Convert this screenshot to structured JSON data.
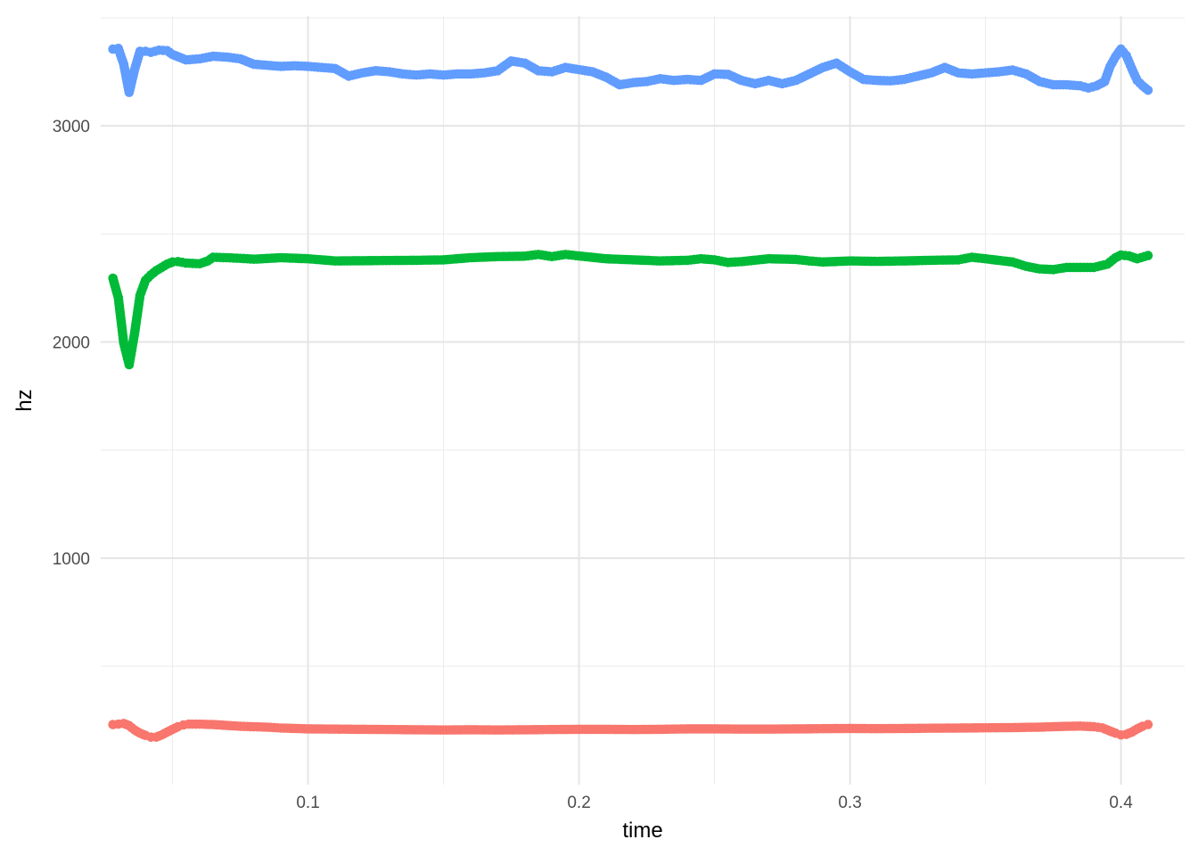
{
  "chart_data": {
    "type": "line",
    "title": "",
    "xlabel": "time",
    "ylabel": "hz",
    "xlim": [
      0.0235,
      0.4235
    ],
    "ylim": [
      -48,
      3508
    ],
    "x_ticks": [
      0.1,
      0.2,
      0.3,
      0.4
    ],
    "x_tick_labels": [
      "0.1",
      "0.2",
      "0.3",
      "0.4"
    ],
    "y_ticks": [
      1000,
      2000,
      3000
    ],
    "y_tick_labels": [
      "1000",
      "2000",
      "3000"
    ],
    "grid": true,
    "legend": "none",
    "series": [
      {
        "color": "#f8766d",
        "points": [
          [
            0.028,
            230
          ],
          [
            0.03,
            232
          ],
          [
            0.032,
            235
          ],
          [
            0.034,
            225
          ],
          [
            0.036,
            205
          ],
          [
            0.038,
            190
          ],
          [
            0.04,
            180
          ],
          [
            0.042,
            172
          ],
          [
            0.044,
            172
          ],
          [
            0.046,
            182
          ],
          [
            0.048,
            195
          ],
          [
            0.05,
            208
          ],
          [
            0.052,
            220
          ],
          [
            0.054,
            228
          ],
          [
            0.056,
            232
          ],
          [
            0.06,
            232
          ],
          [
            0.065,
            230
          ],
          [
            0.07,
            226
          ],
          [
            0.075,
            222
          ],
          [
            0.08,
            220
          ],
          [
            0.085,
            218
          ],
          [
            0.09,
            214
          ],
          [
            0.095,
            212
          ],
          [
            0.1,
            210
          ],
          [
            0.11,
            209
          ],
          [
            0.12,
            208
          ],
          [
            0.13,
            207
          ],
          [
            0.14,
            206
          ],
          [
            0.15,
            205
          ],
          [
            0.16,
            206
          ],
          [
            0.17,
            205
          ],
          [
            0.18,
            206
          ],
          [
            0.19,
            207
          ],
          [
            0.2,
            208
          ],
          [
            0.21,
            208
          ],
          [
            0.22,
            207
          ],
          [
            0.23,
            208
          ],
          [
            0.24,
            210
          ],
          [
            0.25,
            210
          ],
          [
            0.26,
            209
          ],
          [
            0.27,
            209
          ],
          [
            0.28,
            210
          ],
          [
            0.29,
            211
          ],
          [
            0.3,
            212
          ],
          [
            0.31,
            211
          ],
          [
            0.32,
            212
          ],
          [
            0.33,
            213
          ],
          [
            0.34,
            214
          ],
          [
            0.35,
            215
          ],
          [
            0.36,
            216
          ],
          [
            0.37,
            218
          ],
          [
            0.38,
            222
          ],
          [
            0.385,
            223
          ],
          [
            0.39,
            220
          ],
          [
            0.393,
            215
          ],
          [
            0.396,
            200
          ],
          [
            0.398,
            190
          ],
          [
            0.4,
            182
          ],
          [
            0.402,
            185
          ],
          [
            0.404,
            195
          ],
          [
            0.406,
            210
          ],
          [
            0.408,
            222
          ],
          [
            0.41,
            230
          ]
        ]
      },
      {
        "color": "#00ba38",
        "points": [
          [
            0.028,
            2295
          ],
          [
            0.03,
            2205
          ],
          [
            0.032,
            1995
          ],
          [
            0.034,
            1895
          ],
          [
            0.036,
            2040
          ],
          [
            0.038,
            2215
          ],
          [
            0.04,
            2285
          ],
          [
            0.042,
            2310
          ],
          [
            0.044,
            2330
          ],
          [
            0.046,
            2345
          ],
          [
            0.048,
            2360
          ],
          [
            0.05,
            2370
          ],
          [
            0.052,
            2372
          ],
          [
            0.055,
            2365
          ],
          [
            0.06,
            2362
          ],
          [
            0.063,
            2375
          ],
          [
            0.065,
            2392
          ],
          [
            0.07,
            2390
          ],
          [
            0.075,
            2387
          ],
          [
            0.08,
            2383
          ],
          [
            0.09,
            2390
          ],
          [
            0.1,
            2385
          ],
          [
            0.11,
            2375
          ],
          [
            0.12,
            2376
          ],
          [
            0.13,
            2377
          ],
          [
            0.14,
            2378
          ],
          [
            0.15,
            2380
          ],
          [
            0.16,
            2390
          ],
          [
            0.17,
            2395
          ],
          [
            0.18,
            2397
          ],
          [
            0.185,
            2405
          ],
          [
            0.19,
            2395
          ],
          [
            0.195,
            2405
          ],
          [
            0.2,
            2398
          ],
          [
            0.21,
            2385
          ],
          [
            0.22,
            2380
          ],
          [
            0.23,
            2375
          ],
          [
            0.24,
            2378
          ],
          [
            0.245,
            2385
          ],
          [
            0.25,
            2380
          ],
          [
            0.255,
            2368
          ],
          [
            0.26,
            2372
          ],
          [
            0.27,
            2385
          ],
          [
            0.28,
            2382
          ],
          [
            0.285,
            2375
          ],
          [
            0.29,
            2370
          ],
          [
            0.3,
            2375
          ],
          [
            0.31,
            2373
          ],
          [
            0.32,
            2375
          ],
          [
            0.33,
            2378
          ],
          [
            0.34,
            2380
          ],
          [
            0.345,
            2392
          ],
          [
            0.35,
            2385
          ],
          [
            0.36,
            2370
          ],
          [
            0.365,
            2350
          ],
          [
            0.37,
            2338
          ],
          [
            0.375,
            2335
          ],
          [
            0.38,
            2345
          ],
          [
            0.385,
            2345
          ],
          [
            0.39,
            2345
          ],
          [
            0.395,
            2360
          ],
          [
            0.398,
            2390
          ],
          [
            0.4,
            2402
          ],
          [
            0.403,
            2398
          ],
          [
            0.406,
            2385
          ],
          [
            0.41,
            2400
          ]
        ]
      },
      {
        "color": "#619cff",
        "points": [
          [
            0.028,
            3355
          ],
          [
            0.03,
            3358
          ],
          [
            0.032,
            3285
          ],
          [
            0.034,
            3155
          ],
          [
            0.036,
            3260
          ],
          [
            0.038,
            3345
          ],
          [
            0.04,
            3345
          ],
          [
            0.042,
            3340
          ],
          [
            0.045,
            3350
          ],
          [
            0.048,
            3348
          ],
          [
            0.05,
            3330
          ],
          [
            0.055,
            3305
          ],
          [
            0.06,
            3310
          ],
          [
            0.065,
            3322
          ],
          [
            0.07,
            3318
          ],
          [
            0.075,
            3310
          ],
          [
            0.08,
            3285
          ],
          [
            0.085,
            3280
          ],
          [
            0.09,
            3275
          ],
          [
            0.095,
            3278
          ],
          [
            0.1,
            3275
          ],
          [
            0.105,
            3270
          ],
          [
            0.11,
            3265
          ],
          [
            0.115,
            3230
          ],
          [
            0.12,
            3245
          ],
          [
            0.125,
            3255
          ],
          [
            0.13,
            3250
          ],
          [
            0.135,
            3240
          ],
          [
            0.14,
            3235
          ],
          [
            0.145,
            3240
          ],
          [
            0.15,
            3235
          ],
          [
            0.155,
            3240
          ],
          [
            0.16,
            3240
          ],
          [
            0.165,
            3245
          ],
          [
            0.17,
            3255
          ],
          [
            0.175,
            3300
          ],
          [
            0.18,
            3290
          ],
          [
            0.185,
            3255
          ],
          [
            0.19,
            3250
          ],
          [
            0.195,
            3270
          ],
          [
            0.2,
            3260
          ],
          [
            0.205,
            3250
          ],
          [
            0.21,
            3225
          ],
          [
            0.215,
            3190
          ],
          [
            0.22,
            3200
          ],
          [
            0.225,
            3205
          ],
          [
            0.23,
            3218
          ],
          [
            0.235,
            3210
          ],
          [
            0.24,
            3215
          ],
          [
            0.245,
            3210
          ],
          [
            0.25,
            3240
          ],
          [
            0.255,
            3238
          ],
          [
            0.26,
            3210
          ],
          [
            0.265,
            3195
          ],
          [
            0.27,
            3210
          ],
          [
            0.275,
            3195
          ],
          [
            0.28,
            3210
          ],
          [
            0.285,
            3240
          ],
          [
            0.29,
            3270
          ],
          [
            0.295,
            3290
          ],
          [
            0.3,
            3250
          ],
          [
            0.305,
            3215
          ],
          [
            0.31,
            3210
          ],
          [
            0.315,
            3208
          ],
          [
            0.32,
            3215
          ],
          [
            0.325,
            3230
          ],
          [
            0.33,
            3245
          ],
          [
            0.335,
            3270
          ],
          [
            0.34,
            3245
          ],
          [
            0.345,
            3240
          ],
          [
            0.35,
            3245
          ],
          [
            0.355,
            3250
          ],
          [
            0.36,
            3258
          ],
          [
            0.365,
            3240
          ],
          [
            0.37,
            3205
          ],
          [
            0.375,
            3190
          ],
          [
            0.38,
            3190
          ],
          [
            0.385,
            3185
          ],
          [
            0.388,
            3175
          ],
          [
            0.391,
            3185
          ],
          [
            0.394,
            3205
          ],
          [
            0.396,
            3275
          ],
          [
            0.398,
            3320
          ],
          [
            0.4,
            3355
          ],
          [
            0.402,
            3325
          ],
          [
            0.404,
            3265
          ],
          [
            0.406,
            3210
          ],
          [
            0.408,
            3185
          ],
          [
            0.41,
            3165
          ]
        ]
      }
    ]
  }
}
